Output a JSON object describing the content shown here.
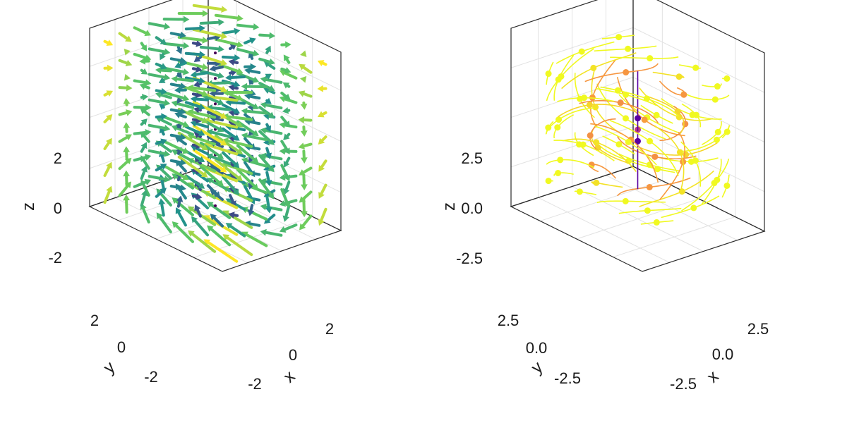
{
  "chart_data": [
    {
      "type": "arrows3d",
      "xlabel": "x",
      "ylabel": "y",
      "zlabel": "z",
      "xticks": [
        "-2",
        "0",
        "2"
      ],
      "yticks": [
        "2",
        "0",
        "-2"
      ],
      "zticks": [
        "2",
        "0",
        "-2"
      ],
      "xlim": [
        -3.5,
        3.5
      ],
      "ylim": [
        -3.5,
        3.5
      ],
      "zlim": [
        -3.5,
        3.5
      ],
      "grid": true,
      "colormap": "viridis",
      "colors": [
        "#440154",
        "#3b528b",
        "#21918c",
        "#5ec962",
        "#fde725"
      ],
      "grid_points": [
        -3,
        -2,
        -1,
        0,
        1,
        2,
        3
      ]
    },
    {
      "type": "streamplot3d",
      "xlabel": "x",
      "ylabel": "y",
      "zlabel": "z",
      "xticks": [
        "-2.5",
        "0.0",
        "2.5"
      ],
      "yticks": [
        "2.5",
        "0.0",
        "-2.5"
      ],
      "zticks": [
        "2.5",
        "0.0",
        "-2.5"
      ],
      "xlim": [
        -4.5,
        4.5
      ],
      "ylim": [
        -4.5,
        4.5
      ],
      "zlim": [
        -4.5,
        4.5
      ],
      "grid": true,
      "colormap": "plasma",
      "colors": [
        "#0d0887",
        "#6a00a8",
        "#b12a90",
        "#e16462",
        "#fca636",
        "#f0f921"
      ]
    }
  ]
}
